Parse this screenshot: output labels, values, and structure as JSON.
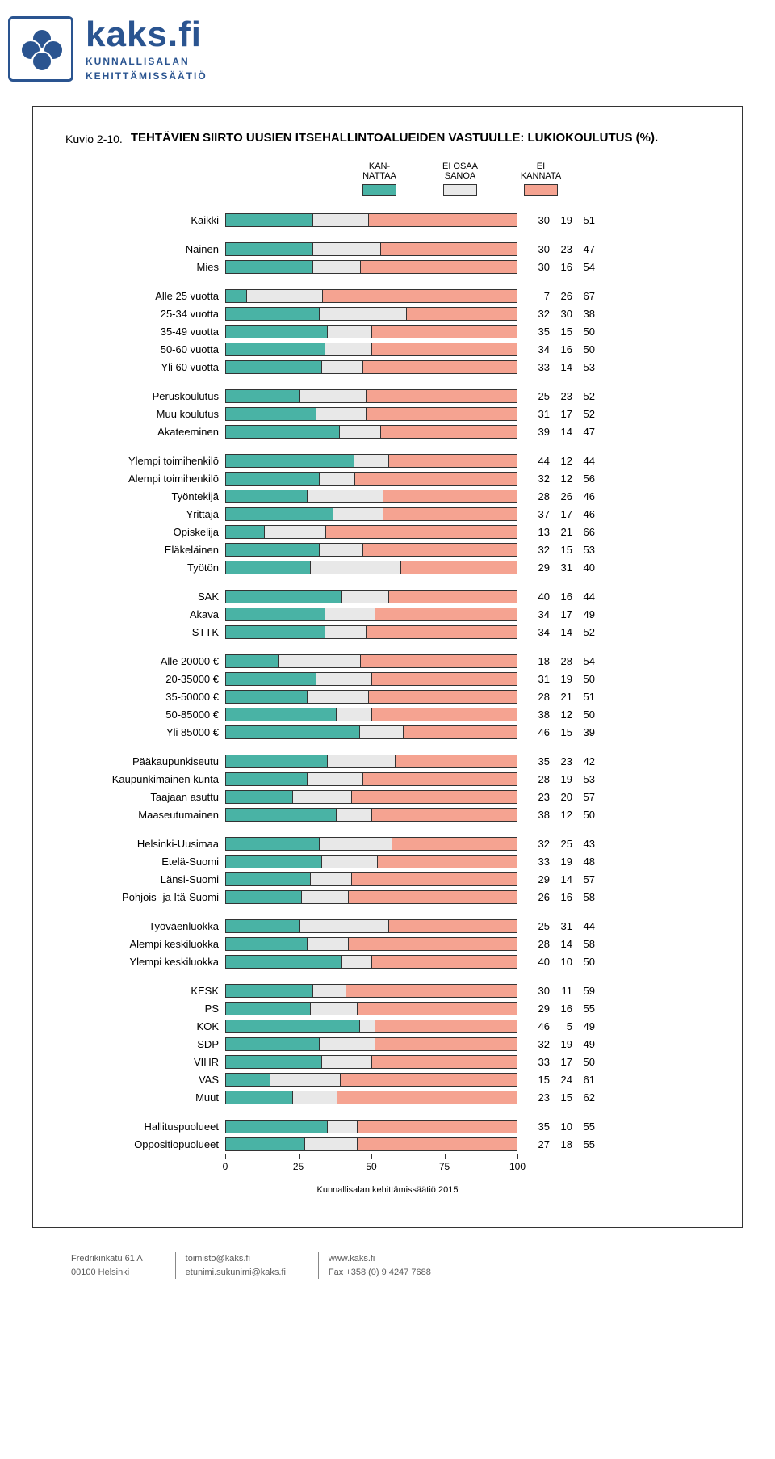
{
  "colors": {
    "kannattaa": "#49b3a5",
    "eiosaa": "#e8e8e8",
    "eikannata": "#f5a391",
    "border": "#333333"
  },
  "logo": {
    "brand": "kaks.fi",
    "sub1": "KUNNALLISALAN",
    "sub2": "KEHITTÄMISSÄÄTIÖ"
  },
  "kuvio": "Kuvio 2-10.",
  "title": "TEHTÄVIEN SIIRTO UUSIEN ITSEHALLINTOALUEIDEN VASTUULLE: LUKIOKOULUTUS (%).",
  "legend": [
    {
      "label": "KAN-\nNATTAA",
      "color": "#49b3a5"
    },
    {
      "label": "EI OSAA\nSANOA",
      "color": "#e8e8e8"
    },
    {
      "label": "EI\nKANNATA",
      "color": "#f5a391"
    }
  ],
  "axis": {
    "min": 0,
    "max": 100,
    "ticks": [
      0,
      25,
      50,
      75,
      100
    ]
  },
  "groups": [
    [
      {
        "label": "Kaikki",
        "v": [
          30,
          19,
          51
        ]
      }
    ],
    [
      {
        "label": "Nainen",
        "v": [
          30,
          23,
          47
        ]
      },
      {
        "label": "Mies",
        "v": [
          30,
          16,
          54
        ]
      }
    ],
    [
      {
        "label": "Alle 25 vuotta",
        "v": [
          7,
          26,
          67
        ]
      },
      {
        "label": "25-34 vuotta",
        "v": [
          32,
          30,
          38
        ]
      },
      {
        "label": "35-49 vuotta",
        "v": [
          35,
          15,
          50
        ]
      },
      {
        "label": "50-60 vuotta",
        "v": [
          34,
          16,
          50
        ]
      },
      {
        "label": "Yli 60 vuotta",
        "v": [
          33,
          14,
          53
        ]
      }
    ],
    [
      {
        "label": "Peruskoulutus",
        "v": [
          25,
          23,
          52
        ]
      },
      {
        "label": "Muu koulutus",
        "v": [
          31,
          17,
          52
        ]
      },
      {
        "label": "Akateeminen",
        "v": [
          39,
          14,
          47
        ]
      }
    ],
    [
      {
        "label": "Ylempi toimihenkilö",
        "v": [
          44,
          12,
          44
        ]
      },
      {
        "label": "Alempi toimihenkilö",
        "v": [
          32,
          12,
          56
        ]
      },
      {
        "label": "Työntekijä",
        "v": [
          28,
          26,
          46
        ]
      },
      {
        "label": "Yrittäjä",
        "v": [
          37,
          17,
          46
        ]
      },
      {
        "label": "Opiskelija",
        "v": [
          13,
          21,
          66
        ]
      },
      {
        "label": "Eläkeläinen",
        "v": [
          32,
          15,
          53
        ]
      },
      {
        "label": "Työtön",
        "v": [
          29,
          31,
          40
        ]
      }
    ],
    [
      {
        "label": "SAK",
        "v": [
          40,
          16,
          44
        ]
      },
      {
        "label": "Akava",
        "v": [
          34,
          17,
          49
        ]
      },
      {
        "label": "STTK",
        "v": [
          34,
          14,
          52
        ]
      }
    ],
    [
      {
        "label": "Alle 20000 €",
        "v": [
          18,
          28,
          54
        ]
      },
      {
        "label": "20-35000 €",
        "v": [
          31,
          19,
          50
        ]
      },
      {
        "label": "35-50000 €",
        "v": [
          28,
          21,
          51
        ]
      },
      {
        "label": "50-85000 €",
        "v": [
          38,
          12,
          50
        ]
      },
      {
        "label": "Yli 85000 €",
        "v": [
          46,
          15,
          39
        ]
      }
    ],
    [
      {
        "label": "Pääkaupunkiseutu",
        "v": [
          35,
          23,
          42
        ]
      },
      {
        "label": "Kaupunkimainen kunta",
        "v": [
          28,
          19,
          53
        ]
      },
      {
        "label": "Taajaan asuttu",
        "v": [
          23,
          20,
          57
        ]
      },
      {
        "label": "Maaseutumainen",
        "v": [
          38,
          12,
          50
        ]
      }
    ],
    [
      {
        "label": "Helsinki-Uusimaa",
        "v": [
          32,
          25,
          43
        ]
      },
      {
        "label": "Etelä-Suomi",
        "v": [
          33,
          19,
          48
        ]
      },
      {
        "label": "Länsi-Suomi",
        "v": [
          29,
          14,
          57
        ]
      },
      {
        "label": "Pohjois- ja Itä-Suomi",
        "v": [
          26,
          16,
          58
        ]
      }
    ],
    [
      {
        "label": "Työväenluokka",
        "v": [
          25,
          31,
          44
        ]
      },
      {
        "label": "Alempi keskiluokka",
        "v": [
          28,
          14,
          58
        ]
      },
      {
        "label": "Ylempi keskiluokka",
        "v": [
          40,
          10,
          50
        ]
      }
    ],
    [
      {
        "label": "KESK",
        "v": [
          30,
          11,
          59
        ]
      },
      {
        "label": "PS",
        "v": [
          29,
          16,
          55
        ]
      },
      {
        "label": "KOK",
        "v": [
          46,
          5,
          49
        ]
      },
      {
        "label": "SDP",
        "v": [
          32,
          19,
          49
        ]
      },
      {
        "label": "VIHR",
        "v": [
          33,
          17,
          50
        ]
      },
      {
        "label": "VAS",
        "v": [
          15,
          24,
          61
        ]
      },
      {
        "label": "Muut",
        "v": [
          23,
          15,
          62
        ]
      }
    ],
    [
      {
        "label": "Hallituspuolueet",
        "v": [
          35,
          10,
          55
        ]
      },
      {
        "label": "Oppositiopuolueet",
        "v": [
          27,
          18,
          55
        ]
      }
    ]
  ],
  "source": "Kunnallisalan kehittämissäätiö 2015",
  "footer": {
    "addr1": "Fredrikinkatu 61 A",
    "addr2": "00100 Helsinki",
    "email1": "toimisto@kaks.fi",
    "email2": "etunimi.sukunimi@kaks.fi",
    "web": "www.kaks.fi",
    "fax": "Fax +358 (0) 9 4247 7688"
  }
}
